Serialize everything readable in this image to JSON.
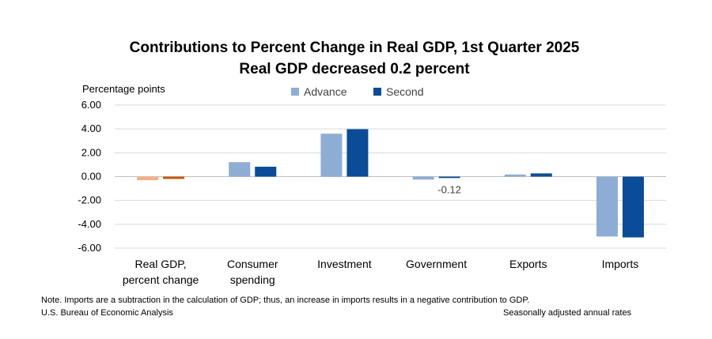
{
  "chart_data": {
    "type": "bar",
    "title": "Contributions to Percent Change in Real GDP, 1st Quarter 2025",
    "subtitle": "Real GDP decreased 0.2 percent",
    "ylabel": "Percentage points",
    "ylim": [
      -6,
      6
    ],
    "yticks": [
      "6.00",
      "4.00",
      "2.00",
      "0.00",
      "-2.00",
      "-4.00",
      "-6.00"
    ],
    "ytick_values": [
      6,
      4,
      2,
      0,
      -2,
      -4,
      -6
    ],
    "grid": true,
    "legend_position": "top-center",
    "categories": [
      [
        "Real GDP,",
        "percent change"
      ],
      [
        "Consumer",
        "spending"
      ],
      [
        "Investment"
      ],
      [
        "Government"
      ],
      [
        "Exports"
      ],
      [
        "Imports"
      ]
    ],
    "series": [
      {
        "name": "Advance",
        "color": "#8eadd4",
        "first_category_color": "#f4b183",
        "values": [
          -0.3,
          1.21,
          3.6,
          -0.25,
          0.18,
          -5.03
        ]
      },
      {
        "name": "Second",
        "color": "#0a4c97",
        "first_category_color": "#c55a11",
        "values": [
          -0.2,
          0.83,
          3.98,
          -0.12,
          0.27,
          -5.1
        ]
      }
    ],
    "annotations": [
      {
        "series": 1,
        "category": 3,
        "text": "-0.12"
      }
    ]
  },
  "footer": {
    "note": "Note. Imports are a subtraction in the calculation of GDP; thus, an increase in imports results in a negative contribution to GDP.",
    "source": "U.S. Bureau of Economic Analysis",
    "rates": "Seasonally adjusted annual rates"
  }
}
